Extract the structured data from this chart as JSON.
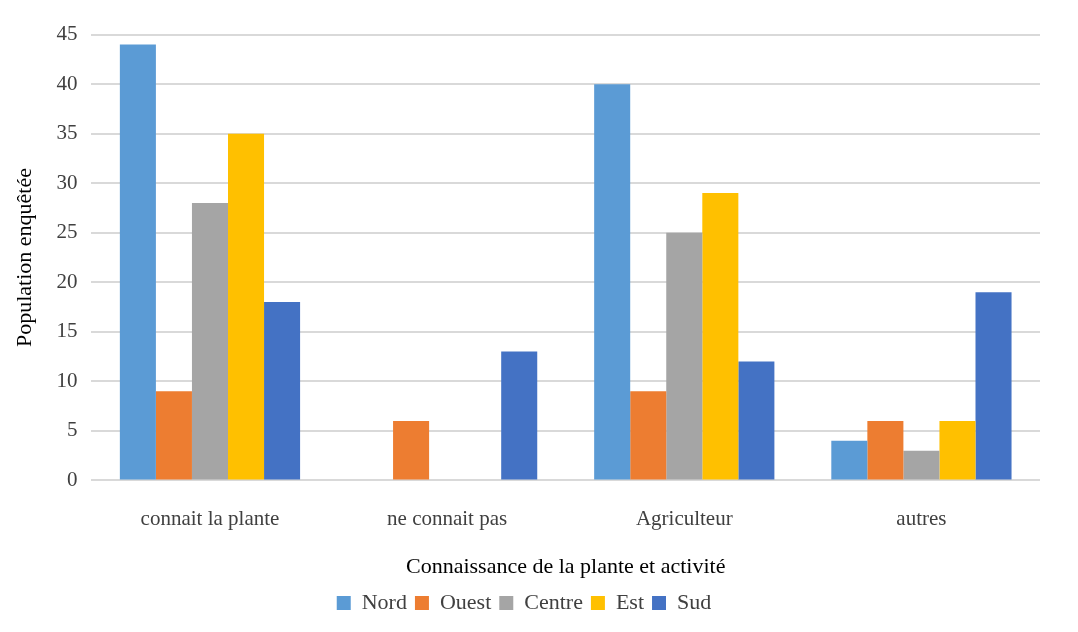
{
  "chart_data": {
    "type": "bar",
    "xlabel": "Connaissance de la plante et activité",
    "ylabel": "Population enquêtée",
    "categories": [
      "connait la plante",
      "ne connait pas",
      "Agriculteur",
      "autres"
    ],
    "series": [
      {
        "name": "Nord",
        "color": "#5b9bd5",
        "values": [
          44,
          0,
          40,
          4
        ]
      },
      {
        "name": "Ouest",
        "color": "#ed7d31",
        "values": [
          9,
          6,
          9,
          6
        ]
      },
      {
        "name": "Centre",
        "color": "#a5a5a5",
        "values": [
          28,
          0,
          25,
          3
        ]
      },
      {
        "name": "Est",
        "color": "#ffc000",
        "values": [
          35,
          0,
          29,
          6
        ]
      },
      {
        "name": "Sud",
        "color": "#4472c4",
        "values": [
          18,
          13,
          12,
          19
        ]
      }
    ],
    "ylim": [
      0,
      45
    ],
    "yticks": [
      0,
      5,
      10,
      15,
      20,
      25,
      30,
      35,
      40,
      45
    ],
    "grid": "y",
    "legend": "bottom"
  }
}
